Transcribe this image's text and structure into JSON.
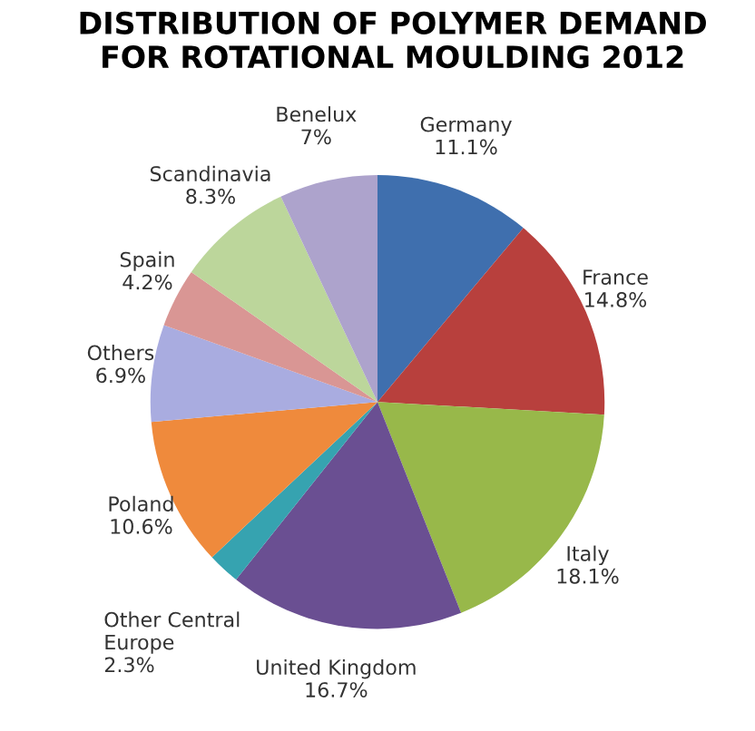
{
  "chart_data": {
    "type": "pie",
    "title": "DISTRIBUTION OF POLYMER DEMAND\nFOR ROTATIONAL MOULDING 2012",
    "categories": [
      "Germany",
      "France",
      "Italy",
      "United Kingdom",
      "Other Central\nEurope",
      "Poland",
      "Others",
      "Spain",
      "Scandinavia",
      "Benelux"
    ],
    "values": [
      11.1,
      14.8,
      18.1,
      16.7,
      2.3,
      10.6,
      6.9,
      4.2,
      8.3,
      7
    ],
    "value_labels": [
      "11.1%",
      "14.8%",
      "18.1%",
      "16.7%",
      "2.3%",
      "10.6%",
      "6.9%",
      "4.2%",
      "8.3%",
      "7%"
    ],
    "colors": [
      "#3f6fae",
      "#b8403d",
      "#98b84a",
      "#6a4f92",
      "#36a3b0",
      "#ef8a3c",
      "#a9ace0",
      "#d99694",
      "#bcd69b",
      "#ada3cc"
    ]
  }
}
